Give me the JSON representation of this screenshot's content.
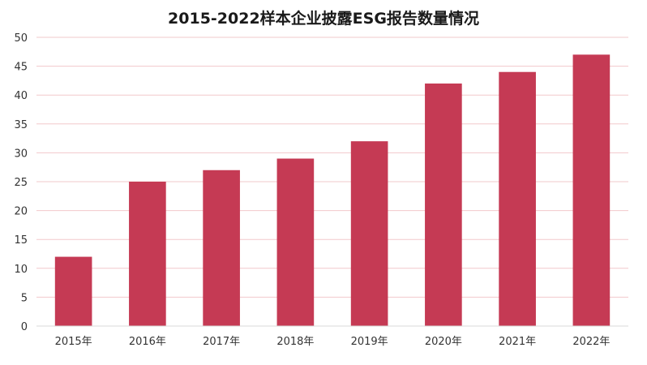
{
  "chart_data": {
    "type": "bar",
    "title": "2015-2022样本企业披露ESG报告数量情况",
    "categories": [
      "2015年",
      "2016年",
      "2017年",
      "2018年",
      "2019年",
      "2020年",
      "2021年",
      "2022年"
    ],
    "values": [
      12,
      25,
      27,
      29,
      32,
      42,
      44,
      47
    ],
    "ylim": [
      0,
      50
    ],
    "yticks": [
      0,
      5,
      10,
      15,
      20,
      25,
      30,
      35,
      40,
      45,
      50
    ],
    "grid": true,
    "bar_color": "#c53a54",
    "grid_color": "#f2c8cb"
  }
}
